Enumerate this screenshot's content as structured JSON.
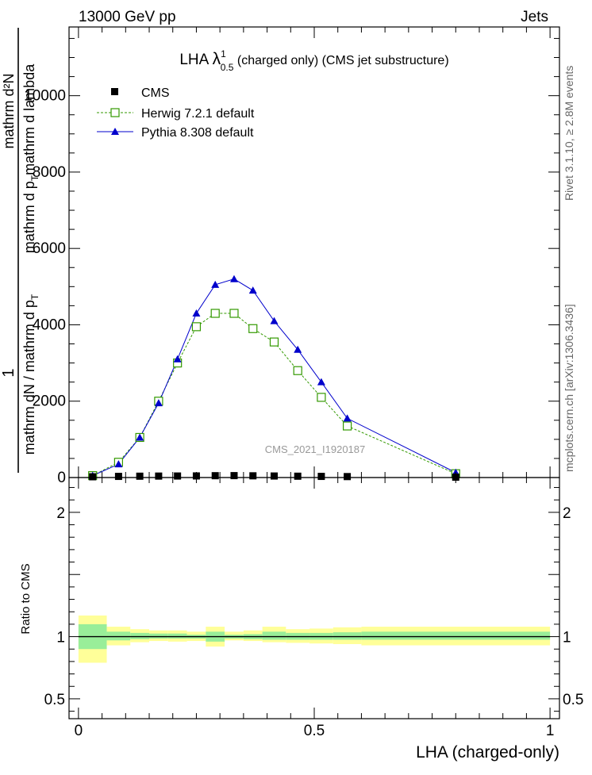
{
  "header": {
    "left": "13000 GeV pp",
    "right": "Jets"
  },
  "title": {
    "prefix": "LHA ",
    "lambda": "λ",
    "sup": "1",
    "sub": "0.5",
    "suffix": " (charged only) (CMS jet substructure)"
  },
  "side_labels": {
    "rivet": "Rivet 3.1.10, ≥ 2.8M events",
    "mcplots": "mcplots.cern.ch [arXiv:1306.3436]"
  },
  "watermark": "CMS_2021_I1920187",
  "ylabel": {
    "one": "1",
    "numerator": "mathrm d²N",
    "denominator_top": "mathrm d p",
    "denominator_top_sub": "T",
    "denominator_top_rest": "mathrm d lambda",
    "denominator_bottom": "mathrm dN / mathrm d p",
    "denominator_bottom_sub": "T"
  },
  "ratio_ylabel": "Ratio to CMS",
  "xlabel": "LHA (charged-only)",
  "colors": {
    "cms": "#000000",
    "herwig": "#339900",
    "pythia": "#0000cc",
    "band_inner": "#99ee99",
    "band_outer": "#ffff99"
  },
  "chart_data": [
    {
      "type": "line",
      "xlim": [
        -0.02,
        1.02
      ],
      "ylim": [
        0,
        11800
      ],
      "y_ticks": [
        0,
        2000,
        4000,
        6000,
        8000,
        10000
      ],
      "y_tick_labels": [
        "0",
        "2000",
        "4000",
        "6000",
        "8000",
        "10000"
      ],
      "legend_position": "top-left",
      "x": [
        0.03,
        0.085,
        0.13,
        0.17,
        0.21,
        0.25,
        0.29,
        0.33,
        0.37,
        0.415,
        0.465,
        0.515,
        0.57,
        0.8
      ],
      "series": [
        {
          "name": "CMS",
          "marker": "square",
          "values": [
            20,
            30,
            35,
            38,
            40,
            42,
            48,
            50,
            45,
            40,
            35,
            30,
            25,
            10
          ]
        },
        {
          "name": "Herwig 7.2.1 default",
          "marker": "open-square",
          "style": "dashed",
          "values": [
            50,
            400,
            1050,
            2000,
            3000,
            3950,
            4300,
            4300,
            3900,
            3550,
            2800,
            2100,
            1350,
            100
          ]
        },
        {
          "name": "Pythia 8.308 default",
          "marker": "triangle",
          "style": "solid",
          "values": [
            50,
            350,
            1050,
            1950,
            3100,
            4300,
            5050,
            5200,
            4900,
            4100,
            3350,
            2500,
            1550,
            130
          ]
        }
      ]
    },
    {
      "type": "area",
      "xlim": [
        -0.02,
        1.02
      ],
      "ylim": [
        0.34,
        2.28
      ],
      "y_ticks": [
        0.5,
        1,
        2
      ],
      "y_tick_labels": [
        "0.5",
        "1",
        "2"
      ],
      "x_ticks": [
        0,
        0.5,
        1
      ],
      "x_tick_labels": [
        "0",
        "0.5",
        "1"
      ],
      "bin_edges": [
        0,
        0.06,
        0.11,
        0.15,
        0.19,
        0.23,
        0.27,
        0.31,
        0.35,
        0.39,
        0.44,
        0.49,
        0.54,
        0.6,
        1.0
      ],
      "inner_band": [
        [
          0.9,
          1.1
        ],
        [
          0.97,
          1.04
        ],
        [
          0.98,
          1.03
        ],
        [
          0.985,
          1.025
        ],
        [
          0.985,
          1.025
        ],
        [
          0.985,
          1.015
        ],
        [
          0.96,
          1.04
        ],
        [
          0.985,
          1.015
        ],
        [
          0.98,
          1.02
        ],
        [
          0.975,
          1.04
        ],
        [
          0.975,
          1.03
        ],
        [
          0.975,
          1.03
        ],
        [
          0.975,
          1.035
        ],
        [
          0.975,
          1.04
        ]
      ],
      "outer_band": [
        [
          0.79,
          1.17
        ],
        [
          0.93,
          1.08
        ],
        [
          0.955,
          1.06
        ],
        [
          0.965,
          1.05
        ],
        [
          0.96,
          1.05
        ],
        [
          0.965,
          1.04
        ],
        [
          0.92,
          1.08
        ],
        [
          0.97,
          1.04
        ],
        [
          0.965,
          1.05
        ],
        [
          0.955,
          1.08
        ],
        [
          0.95,
          1.06
        ],
        [
          0.945,
          1.065
        ],
        [
          0.94,
          1.075
        ],
        [
          0.93,
          1.08
        ]
      ]
    }
  ]
}
